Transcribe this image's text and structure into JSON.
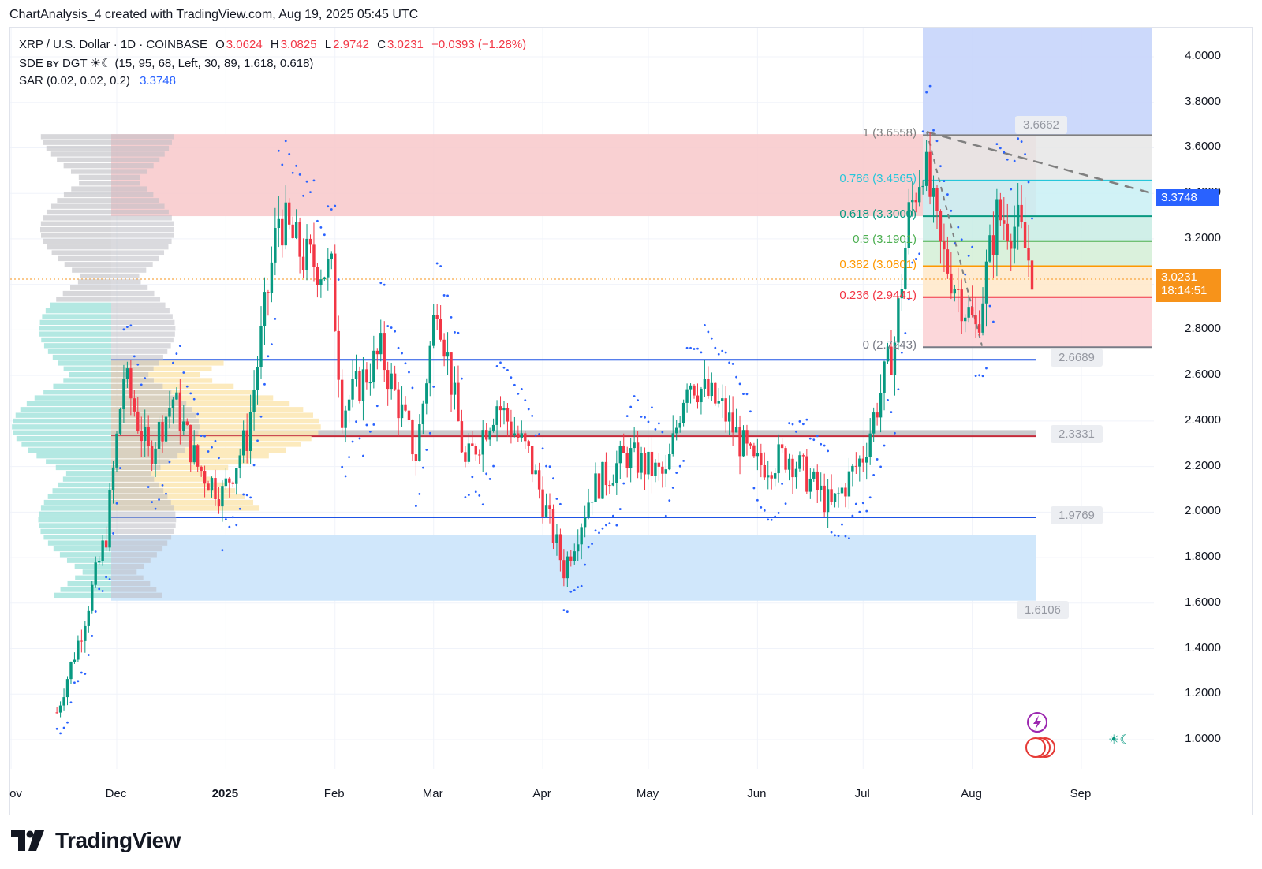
{
  "header": {
    "text": "ChartAnalysis_4 created with TradingView.com, Aug 19, 2025 05:45 UTC"
  },
  "legend": {
    "symbol": "XRP / U.S. Dollar · 1D · COINBASE",
    "o_label": "O",
    "o_value": "3.0624",
    "h_label": "H",
    "h_value": "3.0825",
    "l_label": "L",
    "l_value": "2.9742",
    "c_label": "C",
    "c_value": "3.0231",
    "change": "−0.0393 (−1.28%)",
    "sde": "SDE ʙʏ DGT ☀☾ (15, 95, 68, Left, 30, 89, 1.618, 0.618)",
    "sar_label": "SAR (0.02, 0.02, 0.2)",
    "sar_value": "3.3748"
  },
  "price_axis": {
    "ticks": [
      "4.0000",
      "3.8000",
      "3.6000",
      "3.4000",
      "3.2000",
      "3.0000",
      "2.8000",
      "2.6000",
      "2.4000",
      "2.2000",
      "2.0000",
      "1.8000",
      "1.6000",
      "1.4000",
      "1.2000",
      "1.0000"
    ],
    "sar_badge": "3.3748",
    "last_price": "3.0231",
    "countdown": "18:14:51"
  },
  "time_axis": {
    "labels": [
      "ov",
      "Dec",
      "2025",
      "Feb",
      "Mar",
      "Apr",
      "May",
      "Jun",
      "Jul",
      "Aug",
      "Sep"
    ]
  },
  "fib_levels": [
    {
      "text": "1 (3.6558)",
      "price": 3.6558,
      "color": "#808080"
    },
    {
      "text": "0.786 (3.4565)",
      "price": 3.4565,
      "color": "#26c6da"
    },
    {
      "text": "0.618 (3.3000)",
      "price": 3.3,
      "color": "#089981"
    },
    {
      "text": "0.5 (3.1901)",
      "price": 3.1901,
      "color": "#4caf50"
    },
    {
      "text": "0.382 (3.0801)",
      "price": 3.0801,
      "color": "#ff9800"
    },
    {
      "text": "0.236 (2.9441)",
      "price": 2.9441,
      "color": "#f23645"
    },
    {
      "text": "0 (2.7243)",
      "price": 2.7243,
      "color": "#787b86"
    }
  ],
  "level_tags": [
    "3.6662",
    "2.6689",
    "2.3331",
    "1.9769",
    "1.6106"
  ],
  "levels": {
    "blue_lines": [
      2.6689,
      1.9769
    ],
    "support_band": [
      2.3331,
      2.36
    ],
    "red_zone": [
      3.3,
      3.66
    ],
    "blue_zone": [
      1.6106,
      1.9
    ],
    "projection_top": 3.6662
  },
  "logo": {
    "text": "TradingView"
  },
  "colors": {
    "up": "#089981",
    "down": "#f23645",
    "sar": "#2962ff",
    "last_price": "#f7931a",
    "sar_badge": "#2962ff",
    "blue_line": "#1e53e5"
  },
  "chart_data": {
    "type": "candlestick",
    "title": "XRP / U.S. Dollar · 1D · COINBASE",
    "ylim": [
      0.9,
      4.15
    ],
    "x_range": [
      "2024-11-01",
      "2025-09-30"
    ],
    "grid": true,
    "series": [
      {
        "name": "XRP / U.S. Dollar",
        "points": [
          {
            "t": "2024-11-14",
            "c": 1.12
          },
          {
            "t": "2024-11-21",
            "c": 1.48
          },
          {
            "t": "2024-11-28",
            "c": 1.9
          },
          {
            "t": "2024-12-03",
            "c": 2.6
          },
          {
            "t": "2024-12-10",
            "c": 2.25
          },
          {
            "t": "2024-12-17",
            "c": 2.5
          },
          {
            "t": "2024-12-24",
            "c": 2.2
          },
          {
            "t": "2024-12-31",
            "c": 2.08
          },
          {
            "t": "2025-01-07",
            "c": 2.33
          },
          {
            "t": "2025-01-16",
            "c": 3.3
          },
          {
            "t": "2025-01-23",
            "c": 3.12
          },
          {
            "t": "2025-01-31",
            "c": 3.05
          },
          {
            "t": "2025-02-03",
            "c": 2.45
          },
          {
            "t": "2025-02-14",
            "c": 2.7
          },
          {
            "t": "2025-02-24",
            "c": 2.25
          },
          {
            "t": "2025-03-02",
            "c": 2.95
          },
          {
            "t": "2025-03-10",
            "c": 2.2
          },
          {
            "t": "2025-03-19",
            "c": 2.48
          },
          {
            "t": "2025-03-28",
            "c": 2.25
          },
          {
            "t": "2025-04-07",
            "c": 1.75
          },
          {
            "t": "2025-04-15",
            "c": 2.1
          },
          {
            "t": "2025-04-25",
            "c": 2.25
          },
          {
            "t": "2025-05-06",
            "c": 2.15
          },
          {
            "t": "2025-05-12",
            "c": 2.6
          },
          {
            "t": "2025-05-22",
            "c": 2.45
          },
          {
            "t": "2025-05-31",
            "c": 2.2
          },
          {
            "t": "2025-06-10",
            "c": 2.25
          },
          {
            "t": "2025-06-22",
            "c": 2.02
          },
          {
            "t": "2025-07-01",
            "c": 2.25
          },
          {
            "t": "2025-07-10",
            "c": 2.75
          },
          {
            "t": "2025-07-14",
            "c": 3.3
          },
          {
            "t": "2025-07-18",
            "c": 3.55
          },
          {
            "t": "2025-07-23",
            "c": 3.15
          },
          {
            "t": "2025-08-02",
            "c": 2.8
          },
          {
            "t": "2025-08-08",
            "c": 3.3
          },
          {
            "t": "2025-08-14",
            "c": 3.25
          },
          {
            "t": "2025-08-19",
            "c": 3.0231
          }
        ]
      }
    ]
  }
}
